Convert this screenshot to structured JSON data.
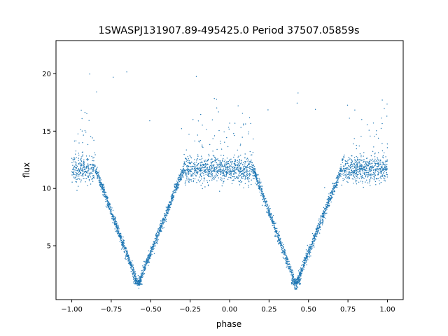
{
  "chart_data": {
    "type": "scatter",
    "title": "1SWASPJ131907.89-495425.0 Period 37507.05859s",
    "xlabel": "phase",
    "ylabel": "flux",
    "xlim": [
      -1.1,
      1.1
    ],
    "ylim": [
      0.3,
      22.9
    ],
    "xticks": [
      -1.0,
      -0.75,
      -0.5,
      -0.25,
      0.0,
      0.25,
      0.5,
      0.75,
      1.0
    ],
    "xtick_labels": [
      "−1.00",
      "−0.75",
      "−0.50",
      "−0.25",
      "0.00",
      "0.25",
      "0.50",
      "0.75",
      "1.00"
    ],
    "yticks": [
      5,
      10,
      15,
      20
    ],
    "ytick_labels": [
      "5",
      "10",
      "15",
      "20"
    ],
    "grid": false,
    "marker_color": "#1f77b4",
    "series": [
      {
        "description_points": "phase-folded light curve: flat baseline with two V-shaped eclipses",
        "baseline_flux": 11.7,
        "baseline_spread": [
          10.0,
          14.0
        ],
        "eclipses": [
          {
            "center_phase": -0.58,
            "min_flux": 1.6,
            "ingress_phase": -0.85,
            "egress_phase": -0.29
          },
          {
            "center_phase": 0.42,
            "min_flux": 1.6,
            "ingress_phase": 0.15,
            "egress_phase": 0.71
          }
        ],
        "outlier_flux_max": 21.5
      }
    ]
  }
}
